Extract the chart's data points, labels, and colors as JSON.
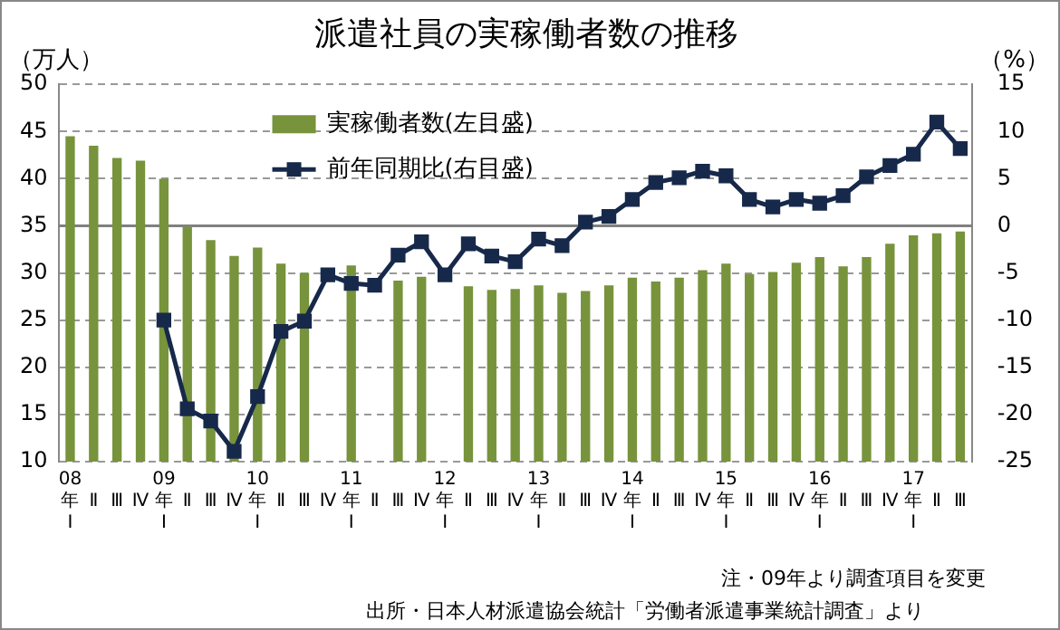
{
  "chart_data": {
    "type": "bar",
    "title": "派遣社員の実稼働者数の推移",
    "ylabel": "（万人）",
    "y2label": "（%）",
    "categories": [
      "08\n年\nⅠ",
      "Ⅱ",
      "Ⅲ",
      "Ⅳ",
      "09\n年\nⅠ",
      "Ⅱ",
      "Ⅲ",
      "Ⅳ",
      "10\n年\nⅠ",
      "Ⅱ",
      "Ⅲ",
      "Ⅳ",
      "11\n年\nⅠ",
      "Ⅱ",
      "Ⅲ",
      "Ⅳ",
      "12\n年\nⅠ",
      "Ⅱ",
      "Ⅲ",
      "Ⅳ",
      "13\n年\nⅠ",
      "Ⅱ",
      "Ⅲ",
      "Ⅳ",
      "14\n年\nⅠ",
      "Ⅱ",
      "Ⅲ",
      "Ⅳ",
      "15\n年\nⅠ",
      "Ⅱ",
      "Ⅲ",
      "Ⅳ",
      "16\n年\nⅠ",
      "Ⅱ",
      "Ⅲ",
      "Ⅳ",
      "17\n年\nⅠ",
      "Ⅱ",
      "Ⅲ"
    ],
    "series": [
      {
        "name": "実稼働者数(左目盛)",
        "color": "#77933c",
        "values": [
          44.5,
          43.5,
          42.2,
          41.9,
          40.0,
          34.9,
          33.5,
          31.8,
          32.7,
          31.0,
          30.0,
          null,
          30.8,
          null,
          29.2,
          29.6,
          null,
          28.6,
          28.2,
          28.3,
          28.7,
          27.9,
          28.1,
          28.7,
          29.5,
          29.1,
          29.5,
          30.3,
          31.0,
          29.9,
          30.1,
          31.1,
          31.7,
          30.7,
          31.7,
          33.1,
          34.0,
          34.2,
          34.4
        ]
      },
      {
        "name": "前年同期比(右目盛)",
        "type": "line",
        "axis": "y2",
        "color": "#17294a",
        "marker": "square",
        "values": [
          null,
          null,
          null,
          null,
          -10,
          -19.4,
          -20.7,
          -23.9,
          -18.1,
          -11.2,
          -10.1,
          -5.2,
          -6.1,
          -6.3,
          -3.1,
          -1.7,
          -5.2,
          -1.9,
          -3.2,
          -3.8,
          -1.4,
          -2.1,
          0.4,
          1.0,
          2.8,
          4.6,
          5.1,
          5.8,
          5.3,
          2.8,
          2.0,
          2.8,
          2.4,
          3.2,
          5.2,
          6.4,
          7.6,
          11.0,
          8.2
        ]
      }
    ],
    "ylim": [
      10,
      50
    ],
    "yticks": [
      10,
      15,
      20,
      25,
      30,
      35,
      40,
      45,
      50
    ],
    "y2lim": [
      -25,
      15
    ],
    "y2ticks": [
      -25,
      -20,
      -15,
      -10,
      -5,
      0,
      5,
      10,
      15
    ],
    "ref_lines": [
      {
        "axis": "y2",
        "value": 0,
        "color": "#808080"
      }
    ],
    "grid": "y",
    "legend": "top left",
    "annotations": [
      "注・09年より調査項目を変更",
      "出所・日本人材派遣協会統計「労働者派遣事業統計調査」より"
    ]
  }
}
